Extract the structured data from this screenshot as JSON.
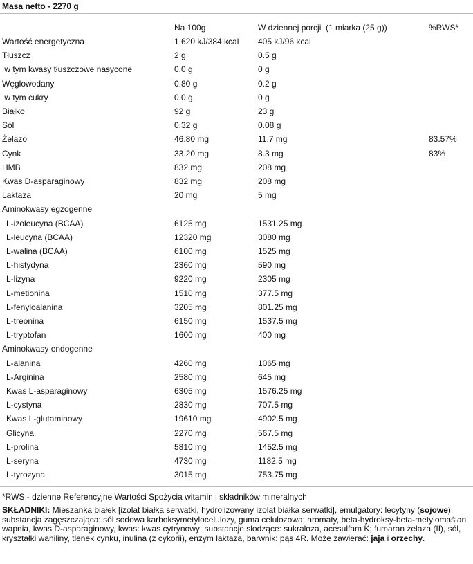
{
  "title": "Masa netto - 2270 g",
  "table": {
    "header": [
      "Na 100g",
      "W dziennej porcji  (1 miarka (25 g))",
      "%RWS*"
    ],
    "groups": [
      {
        "rows": [
          [
            "Wartość energetyczna",
            "1,620 kJ/384 kcal",
            "405 kJ/96 kcal"
          ],
          [
            "Tłuszcz",
            "2 g",
            "0.5 g"
          ],
          [
            " w tym kwasy tłuszczowe nasycone",
            "0.0 g",
            "0 g"
          ],
          [
            "Węglowodany",
            "0.80 g",
            "0.2 g"
          ],
          [
            " w tym cukry",
            "0.0 g",
            "0 g"
          ],
          [
            "Białko",
            "92 g",
            "23 g"
          ],
          [
            "Sól",
            "0.32 g",
            "0.08 g"
          ],
          [
            "Żelazo",
            "46.80 mg",
            "11.7 mg",
            "83.57%"
          ],
          [
            "Cynk",
            "33.20 mg",
            "8.3 mg",
            "83%"
          ],
          [
            "HMB",
            "832 mg",
            "208 mg"
          ],
          [
            "Kwas D-asparaginowy",
            "832 mg",
            "208 mg"
          ],
          [
            "Laktaza",
            "20 mg",
            "5 mg"
          ]
        ]
      },
      {
        "title": "Aminokwasy egzogenne",
        "rows": [
          [
            "L-izoleucyna (BCAA)",
            "6125 mg",
            "1531.25 mg"
          ],
          [
            "L-leucyna (BCAA)",
            "12320 mg",
            "3080 mg"
          ],
          [
            "L-walina (BCAA)",
            "6100 mg",
            "1525 mg"
          ],
          [
            "L-histydyna",
            "2360 mg",
            "590 mg"
          ],
          [
            "L-lizyna",
            "9220 mg",
            "2305 mg"
          ],
          [
            "L-metionina",
            "1510 mg",
            "377.5 mg"
          ],
          [
            "L-fenyloalanina",
            "3205 mg",
            "801.25 mg"
          ],
          [
            "L-treonina",
            "6150 mg",
            "1537.5 mg"
          ],
          [
            "L-tryptofan",
            "1600 mg",
            "400 mg"
          ]
        ]
      },
      {
        "title": "Aminokwasy endogenne",
        "rows": [
          [
            "L-alanina",
            "4260 mg",
            "1065 mg"
          ],
          [
            "L-Arginina",
            "2580 mg",
            "645 mg"
          ],
          [
            "Kwas L-asparaginowy",
            "6305 mg",
            "1576.25 mg"
          ],
          [
            "L-cystyna",
            "2830 mg",
            "707.5 mg"
          ],
          [
            "Kwas L-glutaminowy",
            "19610 mg",
            "4902.5 mg"
          ],
          [
            "Glicyna",
            "2270 mg",
            "567.5 mg"
          ],
          [
            "L-prolina",
            "5810 mg",
            "1452.5 mg"
          ],
          [
            "L-seryna",
            "4730 mg",
            "1182.5 mg"
          ],
          [
            "L-tyrozyna",
            "3015 mg",
            "753.75 mg"
          ]
        ]
      }
    ]
  },
  "footnote": "*RWS - dzienne Referencyjne Wartości Spożycia witamin i składników mineralnych",
  "ingredients": {
    "label": "SKŁADNIKI:",
    "parts": [
      " Mieszanka białek [izolat białka serwatki, hydrolizowany izolat białka serwatki], emulgatory: lecytyny (",
      "sojowe",
      "), substancja zagęszczająca: sól sodowa karboksymetylocelulozy, guma celulozowa; aromaty, beta-hydroksy-beta-metylomaślan wapnia, kwas D-asparaginowy, kwas: kwas cytrynowy; substancje słodzące: sukraloza, acesulfam K; fumaran żelaza (II), sól, kryształki waniliny, tlenek cynku, inulina (z cykorii), enzym laktaza, barwnik: pąs 4R. Może zawierać: ",
      "jaja",
      " i ",
      "orzechy",
      "."
    ]
  }
}
